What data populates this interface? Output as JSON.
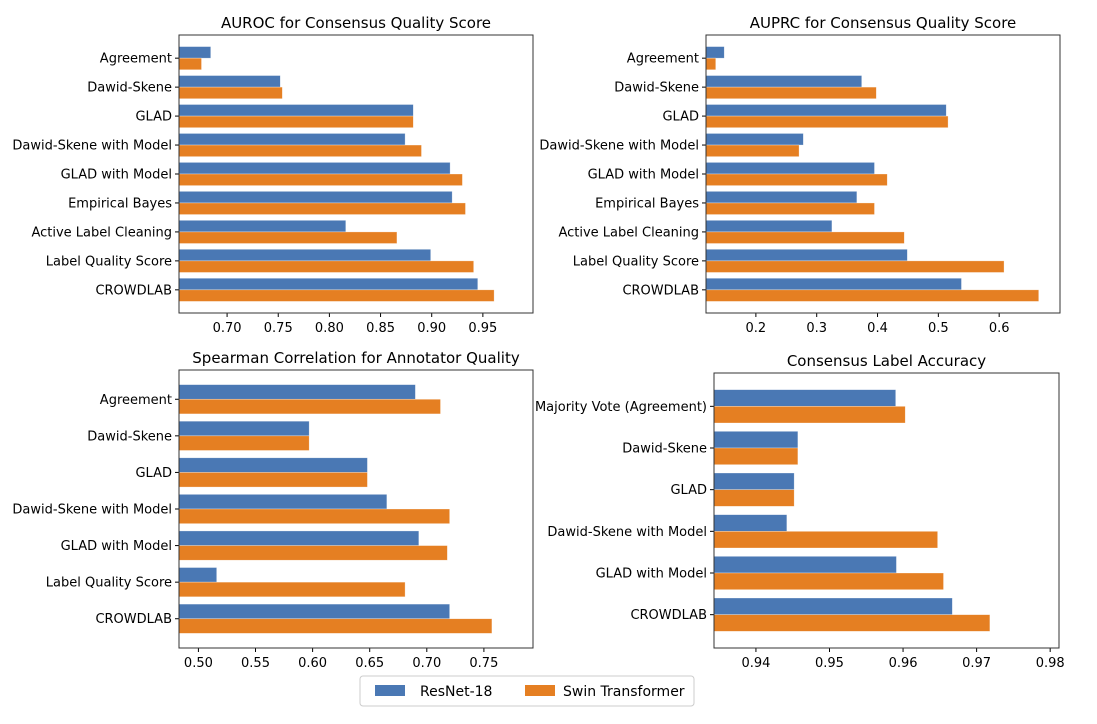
{
  "colors": {
    "resnet": "#4a78b4",
    "swin": "#e57f22"
  },
  "legend": {
    "placement": "bottom-center",
    "items": [
      "ResNet-18",
      "Swin Transformer"
    ]
  },
  "chart_data": [
    {
      "type": "bar",
      "orientation": "horizontal",
      "title": "AUROC for Consensus Quality Score",
      "categories": [
        "Agreement",
        "Dawid-Skene",
        "GLAD",
        "Dawid-Skene with Model",
        "GLAD with Model",
        "Empirical Bayes",
        "Active Label Cleaning",
        "Label Quality Score",
        "CROWDLAB"
      ],
      "series": [
        {
          "name": "ResNet-18",
          "values": [
            0.684,
            0.752,
            0.882,
            0.874,
            0.918,
            0.92,
            0.816,
            0.899,
            0.945
          ]
        },
        {
          "name": "Swin Transformer",
          "values": [
            0.675,
            0.754,
            0.882,
            0.89,
            0.93,
            0.933,
            0.866,
            0.941,
            0.961
          ]
        }
      ],
      "xlim": [
        0.653,
        0.999
      ],
      "xticks": [
        "0.70",
        "0.75",
        "0.80",
        "0.85",
        "0.90",
        "0.95"
      ],
      "grid": false
    },
    {
      "type": "bar",
      "orientation": "horizontal",
      "title": "AUPRC for Consensus Quality Score",
      "categories": [
        "Agreement",
        "Dawid-Skene",
        "GLAD",
        "Dawid-Skene with Model",
        "GLAD with Model",
        "Empirical Bayes",
        "Active Label Cleaning",
        "Label Quality Score",
        "CROWDLAB"
      ],
      "series": [
        {
          "name": "ResNet-18",
          "values": [
            0.148,
            0.374,
            0.513,
            0.278,
            0.395,
            0.366,
            0.325,
            0.449,
            0.538
          ]
        },
        {
          "name": "Swin Transformer",
          "values": [
            0.134,
            0.398,
            0.516,
            0.271,
            0.416,
            0.395,
            0.444,
            0.608,
            0.665
          ]
        }
      ],
      "xlim": [
        0.118,
        0.7
      ],
      "xticks": [
        "0.2",
        "0.3",
        "0.4",
        "0.5",
        "0.6"
      ],
      "grid": false
    },
    {
      "type": "bar",
      "orientation": "horizontal",
      "title": "Spearman Correlation for Annotator Quality",
      "categories": [
        "Agreement",
        "Dawid-Skene",
        "GLAD",
        "Dawid-Skene with Model",
        "GLAD with Model",
        "Label Quality Score",
        "CROWDLAB"
      ],
      "series": [
        {
          "name": "ResNet-18",
          "values": [
            0.69,
            0.597,
            0.648,
            0.665,
            0.693,
            0.516,
            0.72
          ]
        },
        {
          "name": "Swin Transformer",
          "values": [
            0.712,
            0.597,
            0.648,
            0.72,
            0.718,
            0.681,
            0.757
          ]
        }
      ],
      "xlim": [
        0.483,
        0.793
      ],
      "xticks": [
        "0.50",
        "0.55",
        "0.60",
        "0.65",
        "0.70",
        "0.75"
      ],
      "grid": false
    },
    {
      "type": "bar",
      "orientation": "horizontal",
      "title": "Consensus Label Accuracy",
      "categories": [
        "Majority Vote (Agreement)",
        "Dawid-Skene",
        "GLAD",
        "Dawid-Skene with Model",
        "GLAD with Model",
        "CROWDLAB"
      ],
      "series": [
        {
          "name": "ResNet-18",
          "values": [
            0.959,
            0.9457,
            0.9452,
            0.9442,
            0.9591,
            0.9667
          ]
        },
        {
          "name": "Swin Transformer",
          "values": [
            0.9603,
            0.9457,
            0.9452,
            0.9647,
            0.9655,
            0.9718
          ]
        }
      ],
      "xlim": [
        0.9343,
        0.9812
      ],
      "xticks": [
        "0.94",
        "0.95",
        "0.96",
        "0.97",
        "0.98"
      ],
      "grid": false
    }
  ]
}
